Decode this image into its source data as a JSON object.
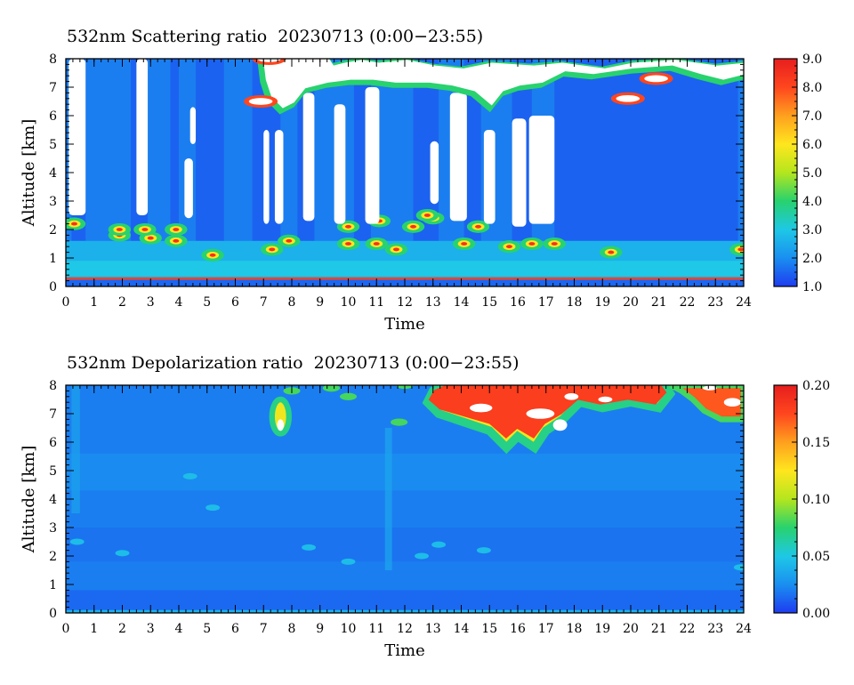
{
  "chart_data": [
    {
      "type": "heatmap",
      "title": "532nm Scattering ratio  20230713 (0:00−23:55)",
      "xlabel": "Time",
      "ylabel": "Altitude [km]",
      "xlim": [
        0,
        24
      ],
      "ylim": [
        0,
        8
      ],
      "x_ticks": [
        "0",
        "1",
        "2",
        "3",
        "4",
        "5",
        "6",
        "7",
        "8",
        "9",
        "10",
        "11",
        "12",
        "13",
        "14",
        "15",
        "16",
        "17",
        "18",
        "19",
        "20",
        "21",
        "22",
        "23",
        "24"
      ],
      "y_ticks": [
        "0",
        "1",
        "2",
        "3",
        "4",
        "5",
        "6",
        "7",
        "8"
      ],
      "colorbar": {
        "min": 1.0,
        "max": 9.0,
        "ticks": [
          "1.0",
          "2.0",
          "3.0",
          "4.0",
          "5.0",
          "6.0",
          "7.0",
          "8.0",
          "9.0"
        ],
        "colormap": [
          "#1e3cf0",
          "#1a8ff0",
          "#1ec8e6",
          "#28d26e",
          "#b4e61e",
          "#ffe61e",
          "#ffa01e",
          "#ff461e",
          "#e61e1e"
        ]
      },
      "features": {
        "background_value": 1.8,
        "near_surface_layer_km": [
          0,
          1.6
        ],
        "near_surface_value": 2.7,
        "cloud_top_km": [
          6.5,
          8.0
        ],
        "no_data_color": "#ffffff"
      }
    },
    {
      "type": "heatmap",
      "title": "532nm Depolarization ratio  20230713 (0:00−23:55)",
      "xlabel": "Time",
      "ylabel": "Altitude [km]",
      "xlim": [
        0,
        24
      ],
      "ylim": [
        0,
        8
      ],
      "x_ticks": [
        "0",
        "1",
        "2",
        "3",
        "4",
        "5",
        "6",
        "7",
        "8",
        "9",
        "10",
        "11",
        "12",
        "13",
        "14",
        "15",
        "16",
        "17",
        "18",
        "19",
        "20",
        "21",
        "22",
        "23",
        "24"
      ],
      "y_ticks": [
        "0",
        "1",
        "2",
        "3",
        "4",
        "5",
        "6",
        "7",
        "8"
      ],
      "colorbar": {
        "min": 0.0,
        "max": 0.2,
        "ticks": [
          "0.00",
          "0.05",
          "0.10",
          "0.15",
          "0.20"
        ],
        "colormap": [
          "#1e3cf0",
          "#1a8ff0",
          "#1ec8e6",
          "#28d26e",
          "#b4e61e",
          "#ffe61e",
          "#ffa01e",
          "#ff461e",
          "#e61e1e"
        ]
      },
      "features": {
        "background_value": 0.02,
        "high_depol_cloud_hours": [
          13.5,
          24
        ],
        "high_depol_cloud_km": [
          5.8,
          8.0
        ],
        "no_data_color": "#ffffff"
      }
    }
  ]
}
